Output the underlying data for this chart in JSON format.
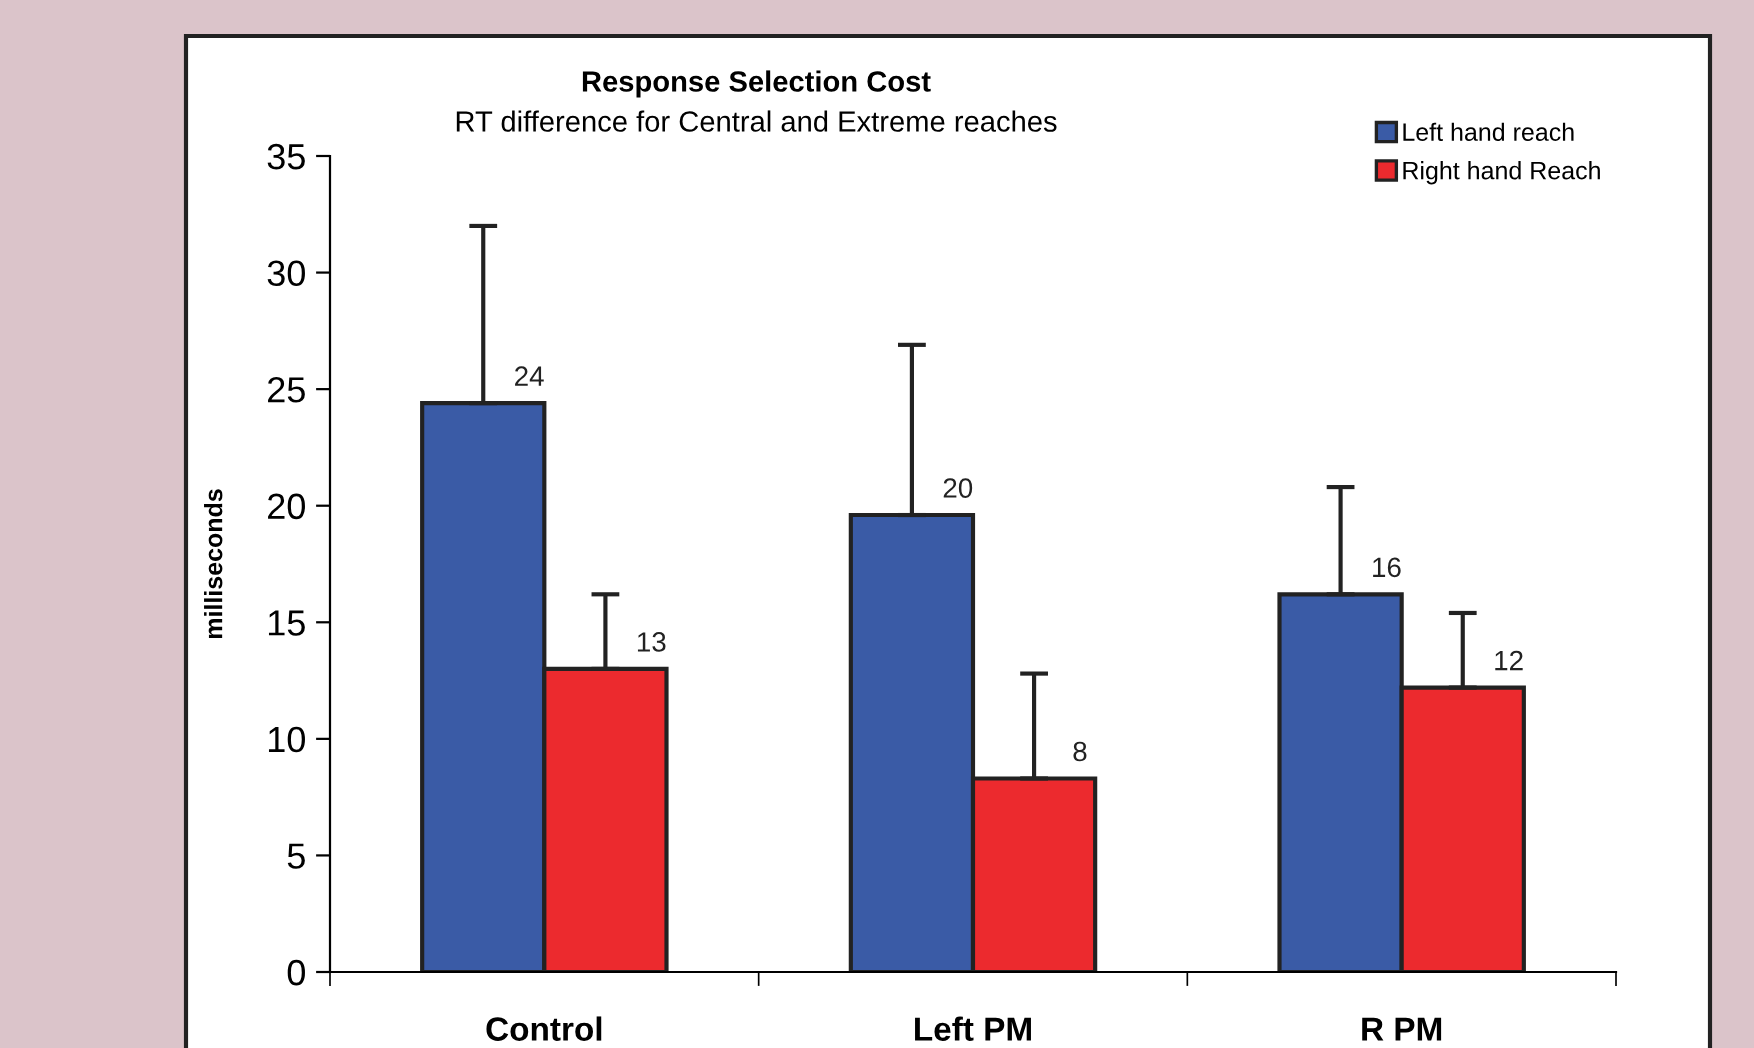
{
  "chart_data": {
    "type": "bar",
    "title": "Response Selection Cost",
    "subtitle": "RT difference for Central and Extreme reaches",
    "ylabel": "milliseconds",
    "categories": [
      "Control",
      "Left PM",
      "R PM"
    ],
    "series": [
      {
        "name": "Left hand reach",
        "color": "#3a5ba6",
        "values": [
          24.4,
          19.6,
          16.2
        ],
        "errors": [
          [
            24.4,
            32
          ],
          [
            19.6,
            26.9
          ],
          [
            16.2,
            20.8
          ]
        ],
        "value_labels": [
          "24",
          "20",
          "16"
        ]
      },
      {
        "name": "Right hand Reach",
        "color": "#ec2a2e",
        "values": [
          13,
          8.3,
          12.2
        ],
        "errors": [
          [
            13,
            16.2
          ],
          [
            8.3,
            12.8
          ],
          [
            12.2,
            15.4
          ]
        ],
        "value_labels": [
          "13",
          "8",
          "12"
        ]
      }
    ],
    "ylim": [
      0,
      35
    ],
    "yticks": [
      0,
      5,
      10,
      15,
      20,
      25,
      30,
      35
    ],
    "grid": false,
    "legend": "top right"
  }
}
